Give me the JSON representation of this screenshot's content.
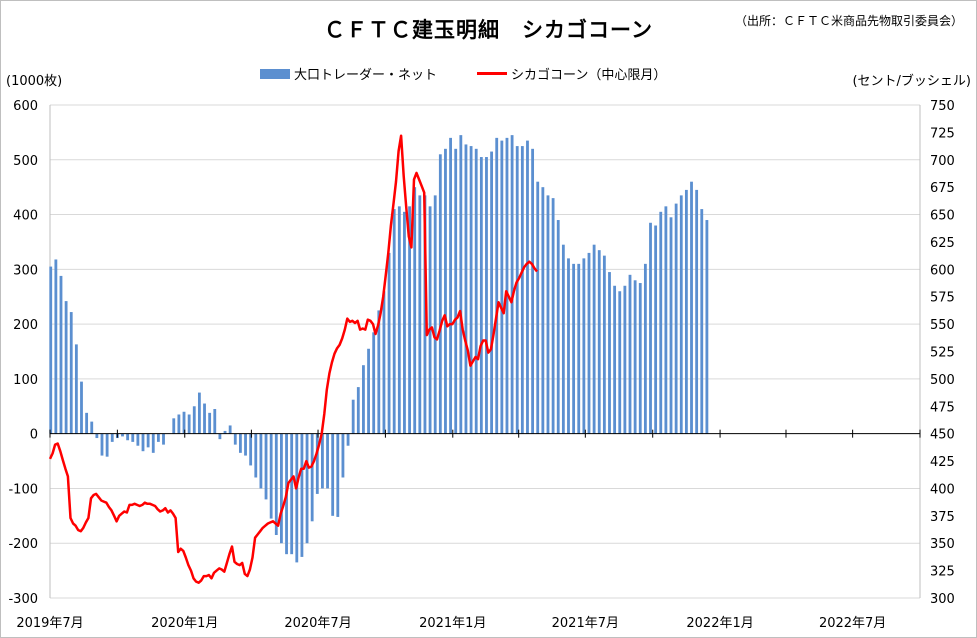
{
  "chart_data": {
    "type": "bar+line",
    "title": "ＣＦＴＣ建玉明細　シカゴコーン",
    "source": "（出所：ＣＦＴＣ米商品先物取引委員会）",
    "left_axis_unit": "(1000枚)",
    "right_axis_unit": "(セント/ブッシェル)",
    "legend": [
      {
        "name": "大口トレーダー・ネット",
        "kind": "bar",
        "color": "#5b8fd0"
      },
      {
        "name": "シカゴコーン（中心限月）",
        "kind": "line",
        "color": "#ff0000"
      }
    ],
    "y_left": {
      "min": -300,
      "max": 600,
      "ticks": [
        -300,
        -200,
        -100,
        0,
        100,
        200,
        300,
        400,
        500,
        600
      ]
    },
    "y_right": {
      "min": 300,
      "max": 750,
      "ticks": [
        300,
        325,
        350,
        375,
        400,
        425,
        450,
        475,
        500,
        525,
        550,
        575,
        600,
        625,
        650,
        675,
        700,
        725,
        750
      ]
    },
    "x_axis": {
      "start": "2019-07-01",
      "end": "2022-10-01",
      "labels": [
        {
          "date": "2019-07-01",
          "text": "2019年7月"
        },
        {
          "date": "2020-01-01",
          "text": "2020年1月"
        },
        {
          "date": "2020-07-01",
          "text": "2020年7月"
        },
        {
          "date": "2021-01-01",
          "text": "2021年1月"
        },
        {
          "date": "2021-07-01",
          "text": "2021年7月"
        },
        {
          "date": "2022-01-01",
          "text": "2022年1月"
        },
        {
          "date": "2022-07-01",
          "text": "2022年7月"
        }
      ]
    },
    "series": [
      {
        "name": "大口トレーダー・ネット",
        "kind": "bar",
        "start_date": "2019-07-02",
        "interval_days": 7,
        "values": [
          305,
          318,
          288,
          242,
          222,
          163,
          95,
          38,
          22,
          -8,
          -40,
          -42,
          -15,
          -8,
          -5,
          -12,
          -15,
          -22,
          -32,
          -25,
          -35,
          -15,
          -20,
          0,
          28,
          35,
          40,
          35,
          50,
          75,
          55,
          38,
          45,
          -10,
          5,
          15,
          -20,
          -35,
          -40,
          -58,
          -80,
          -100,
          -120,
          -155,
          -185,
          -200,
          -220,
          -220,
          -235,
          -225,
          -200,
          -160,
          -110,
          -100,
          -100,
          -150,
          -152,
          -80,
          -22,
          62,
          85,
          125,
          155,
          185,
          225,
          260,
          330,
          410,
          415,
          405,
          415,
          450,
          435,
          435,
          415,
          435,
          510,
          520,
          540,
          520,
          545,
          528,
          525,
          520,
          505,
          505,
          515,
          540,
          535,
          540,
          545,
          525,
          525,
          535,
          520,
          460,
          450,
          435,
          430,
          390,
          345,
          320,
          310,
          310,
          320,
          330,
          345,
          335,
          325,
          295,
          270,
          260,
          270,
          290,
          280,
          275,
          310,
          385,
          380,
          405,
          415,
          395,
          420,
          435,
          445,
          460,
          445,
          410,
          390
        ]
      },
      {
        "name": "シカゴコーン（中心限月）",
        "kind": "line",
        "start_date": "2019-07-01",
        "interval_days": 3.5,
        "values": [
          427,
          432,
          440,
          441,
          434,
          426,
          418,
          411,
          373,
          368,
          366,
          362,
          361,
          364,
          369,
          373,
          391,
          394,
          395,
          392,
          389,
          388,
          387,
          383,
          380,
          375,
          370,
          375,
          377,
          379,
          378,
          385,
          385,
          386,
          385,
          384,
          385,
          387,
          386,
          386,
          385,
          384,
          381,
          379,
          380,
          382,
          378,
          380,
          377,
          373,
          342,
          345,
          343,
          337,
          330,
          325,
          318,
          315,
          314,
          316,
          320,
          320,
          321,
          318,
          323,
          325,
          327,
          326,
          324,
          332,
          340,
          347,
          333,
          331,
          330,
          332,
          322,
          320,
          326,
          337,
          355,
          358,
          361,
          364,
          366,
          368,
          369,
          370,
          368,
          366,
          377,
          384,
          392,
          405,
          408,
          411,
          400,
          410,
          418,
          418,
          425,
          419,
          420,
          425,
          432,
          440,
          450,
          468,
          490,
          505,
          515,
          523,
          528,
          531,
          537,
          545,
          555,
          552,
          553,
          551,
          553,
          545,
          546,
          545,
          554,
          553,
          550,
          541,
          549,
          560,
          575,
          595,
          615,
          640,
          660,
          680,
          708,
          722,
          685,
          656,
          630,
          620,
          682,
          688,
          682,
          676,
          670,
          540,
          545,
          547,
          538,
          536,
          544,
          553,
          558,
          548,
          550,
          550,
          554,
          556,
          562,
          545,
          535,
          526,
          512,
          516,
          520,
          518,
          530,
          535,
          535,
          524,
          527,
          540,
          555,
          570,
          565,
          560,
          580,
          575,
          570,
          580,
          588,
          592,
          597,
          602,
          605,
          607,
          605,
          601,
          598
        ]
      }
    ]
  }
}
